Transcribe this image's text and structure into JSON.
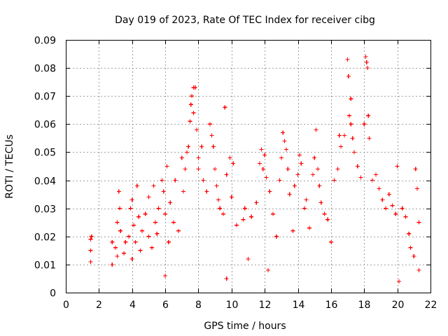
{
  "chart_data": {
    "type": "scatter",
    "title": "Day 019 of 2023, Rate Of TEC Index for receiver cibg",
    "xlabel": "GPS time / hours",
    "ylabel": "ROTI / TECUs",
    "xlim": [
      0,
      22
    ],
    "ylim": [
      0,
      0.09
    ],
    "x_ticks": [
      "0",
      "2",
      "4",
      "6",
      "8",
      "10",
      "12",
      "14",
      "16",
      "18",
      "20",
      "22"
    ],
    "y_ticks": [
      "0",
      "0.01",
      "0.02",
      "0.03",
      "0.04",
      "0.05",
      "0.06",
      "0.07",
      "0.08",
      "0.09"
    ],
    "grid": true,
    "marker": "+",
    "color": "#ff0000",
    "series": [
      {
        "values": [
          [
            1.5,
            0.019
          ],
          [
            1.5,
            0.015
          ],
          [
            1.5,
            0.011
          ],
          [
            1.55,
            0.02
          ],
          [
            2.8,
            0.018
          ],
          [
            2.8,
            0.01
          ],
          [
            3.0,
            0.016
          ],
          [
            3.1,
            0.013
          ],
          [
            3.1,
            0.025
          ],
          [
            3.2,
            0.036
          ],
          [
            3.25,
            0.03
          ],
          [
            3.3,
            0.022
          ],
          [
            3.5,
            0.014
          ],
          [
            3.6,
            0.018
          ],
          [
            3.8,
            0.02
          ],
          [
            3.9,
            0.03
          ],
          [
            4.0,
            0.033
          ],
          [
            4.0,
            0.012
          ],
          [
            4.1,
            0.024
          ],
          [
            4.2,
            0.018
          ],
          [
            4.3,
            0.038
          ],
          [
            4.4,
            0.027
          ],
          [
            4.5,
            0.015
          ],
          [
            4.6,
            0.022
          ],
          [
            4.8,
            0.028
          ],
          [
            5.0,
            0.02
          ],
          [
            5.0,
            0.034
          ],
          [
            5.2,
            0.016
          ],
          [
            5.3,
            0.038
          ],
          [
            5.4,
            0.025
          ],
          [
            5.5,
            0.021
          ],
          [
            5.6,
            0.03
          ],
          [
            5.8,
            0.04
          ],
          [
            5.9,
            0.036
          ],
          [
            6.0,
            0.028
          ],
          [
            6.0,
            0.006
          ],
          [
            6.1,
            0.045
          ],
          [
            6.2,
            0.018
          ],
          [
            6.3,
            0.032
          ],
          [
            6.5,
            0.025
          ],
          [
            6.6,
            0.04
          ],
          [
            6.8,
            0.022
          ],
          [
            7.0,
            0.048
          ],
          [
            7.1,
            0.036
          ],
          [
            7.2,
            0.044
          ],
          [
            7.3,
            0.05
          ],
          [
            7.4,
            0.052
          ],
          [
            7.5,
            0.061
          ],
          [
            7.55,
            0.067
          ],
          [
            7.6,
            0.07
          ],
          [
            7.7,
            0.073
          ],
          [
            7.8,
            0.073
          ],
          [
            7.7,
            0.064
          ],
          [
            7.9,
            0.058
          ],
          [
            8.0,
            0.048
          ],
          [
            8.0,
            0.044
          ],
          [
            8.2,
            0.052
          ],
          [
            8.3,
            0.04
          ],
          [
            8.5,
            0.036
          ],
          [
            8.7,
            0.06
          ],
          [
            8.8,
            0.056
          ],
          [
            8.9,
            0.052
          ],
          [
            9.0,
            0.044
          ],
          [
            9.1,
            0.038
          ],
          [
            9.2,
            0.033
          ],
          [
            9.3,
            0.03
          ],
          [
            9.5,
            0.028
          ],
          [
            9.6,
            0.066
          ],
          [
            9.7,
            0.005
          ],
          [
            9.7,
            0.042
          ],
          [
            9.9,
            0.048
          ],
          [
            10.0,
            0.034
          ],
          [
            10.1,
            0.046
          ],
          [
            10.3,
            0.024
          ],
          [
            10.7,
            0.026
          ],
          [
            10.8,
            0.03
          ],
          [
            11.0,
            0.012
          ],
          [
            11.2,
            0.027
          ],
          [
            11.5,
            0.032
          ],
          [
            11.7,
            0.046
          ],
          [
            11.8,
            0.051
          ],
          [
            11.9,
            0.044
          ],
          [
            12.0,
            0.049
          ],
          [
            12.1,
            0.041
          ],
          [
            12.2,
            0.008
          ],
          [
            12.3,
            0.036
          ],
          [
            12.5,
            0.028
          ],
          [
            12.7,
            0.02
          ],
          [
            12.9,
            0.04
          ],
          [
            13.0,
            0.048
          ],
          [
            13.1,
            0.057
          ],
          [
            13.2,
            0.054
          ],
          [
            13.3,
            0.051
          ],
          [
            13.4,
            0.044
          ],
          [
            13.5,
            0.035
          ],
          [
            13.7,
            0.022
          ],
          [
            13.8,
            0.038
          ],
          [
            14.0,
            0.042
          ],
          [
            14.1,
            0.049
          ],
          [
            14.2,
            0.046
          ],
          [
            14.4,
            0.03
          ],
          [
            14.5,
            0.033
          ],
          [
            14.7,
            0.023
          ],
          [
            14.9,
            0.042
          ],
          [
            15.0,
            0.048
          ],
          [
            15.1,
            0.058
          ],
          [
            15.2,
            0.044
          ],
          [
            15.3,
            0.038
          ],
          [
            15.4,
            0.032
          ],
          [
            15.6,
            0.028
          ],
          [
            15.8,
            0.026
          ],
          [
            16.0,
            0.018
          ],
          [
            16.2,
            0.04
          ],
          [
            16.4,
            0.044
          ],
          [
            16.5,
            0.056
          ],
          [
            16.6,
            0.052
          ],
          [
            16.8,
            0.056
          ],
          [
            17.0,
            0.083
          ],
          [
            17.05,
            0.077
          ],
          [
            17.1,
            0.063
          ],
          [
            17.2,
            0.069
          ],
          [
            17.2,
            0.06
          ],
          [
            17.3,
            0.055
          ],
          [
            17.4,
            0.05
          ],
          [
            17.6,
            0.045
          ],
          [
            17.8,
            0.041
          ],
          [
            18.0,
            0.06
          ],
          [
            18.1,
            0.084
          ],
          [
            18.15,
            0.082
          ],
          [
            18.2,
            0.08
          ],
          [
            18.25,
            0.063
          ],
          [
            18.3,
            0.055
          ],
          [
            18.5,
            0.04
          ],
          [
            18.7,
            0.042
          ],
          [
            18.9,
            0.037
          ],
          [
            19.1,
            0.033
          ],
          [
            19.3,
            0.03
          ],
          [
            19.5,
            0.035
          ],
          [
            19.7,
            0.031
          ],
          [
            19.9,
            0.028
          ],
          [
            20.0,
            0.045
          ],
          [
            20.1,
            0.004
          ],
          [
            20.3,
            0.03
          ],
          [
            20.5,
            0.027
          ],
          [
            20.7,
            0.021
          ],
          [
            20.8,
            0.016
          ],
          [
            21.0,
            0.013
          ],
          [
            21.1,
            0.044
          ],
          [
            21.2,
            0.037
          ],
          [
            21.3,
            0.025
          ],
          [
            21.3,
            0.008
          ]
        ]
      }
    ]
  }
}
